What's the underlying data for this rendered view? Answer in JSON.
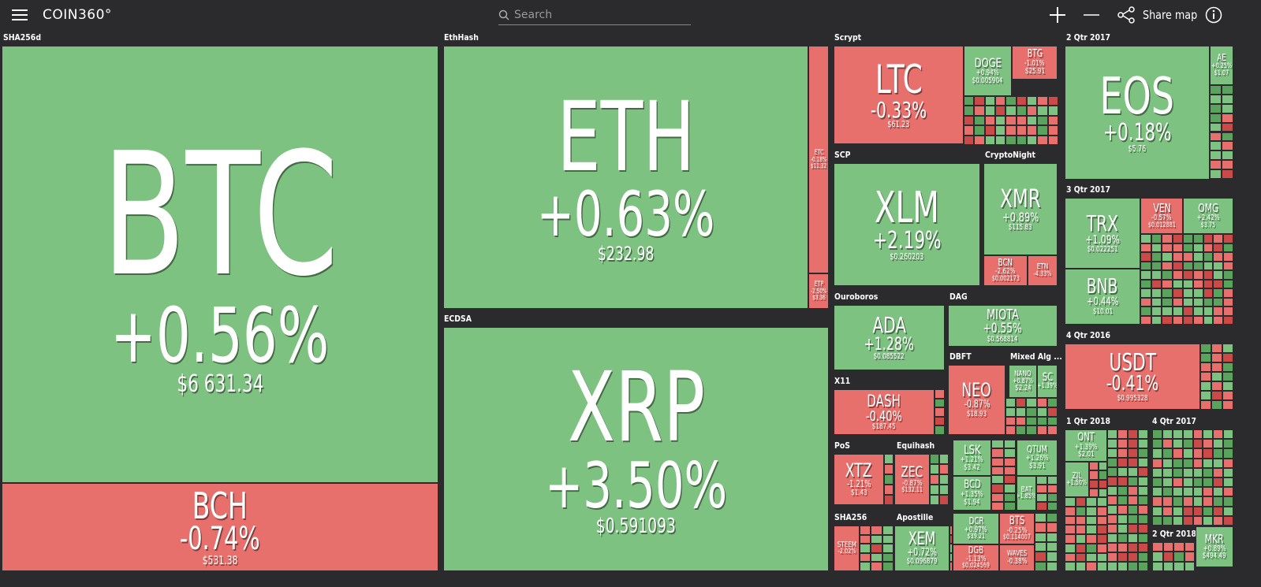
{
  "header": {
    "logo": "COIN360°",
    "search_placeholder": "Search",
    "share": "Share map"
  },
  "groups": [
    {
      "label": "SHA256d",
      "tiles": [
        {
          "symbol": "BTC",
          "change": "+0.56%",
          "price": "$6 631.34",
          "color": "#7dc280"
        },
        {
          "symbol": "BCH",
          "change": "-0.74%",
          "price": "$531.38",
          "color": "#e8706c"
        }
      ]
    },
    {
      "label": "EthHash",
      "tiles": [
        {
          "symbol": "ETH",
          "change": "+0.63%",
          "price": "$232.98",
          "color": "#7dc280"
        },
        {
          "symbol": "ETC",
          "change": "-0.18%",
          "price": "$11.32",
          "color": "#e8706c"
        },
        {
          "symbol": "ETP",
          "change": "-2.50%",
          "price": "$3.36",
          "color": "#e8706c"
        }
      ]
    },
    {
      "label": "ECDSA",
      "tiles": [
        {
          "symbol": "XRP",
          "change": "+3.50%",
          "price": "$0.591093",
          "color": "#7dc280"
        }
      ]
    },
    {
      "label": "Scrypt",
      "tiles": [
        {
          "symbol": "LTC",
          "change": "-0.33%",
          "price": "$61.23",
          "color": "#e8706c"
        },
        {
          "symbol": "DOGE",
          "change": "+0.94%",
          "price": "$0.005904",
          "color": "#7dc280"
        },
        {
          "symbol": "BTG",
          "change": "-1.01%",
          "price": "$25.91",
          "color": "#e8706c"
        }
      ]
    },
    {
      "label": "SCP",
      "tiles": [
        {
          "symbol": "XLM",
          "change": "+2.19%",
          "price": "$0.260203",
          "color": "#7dc280"
        }
      ]
    },
    {
      "label": "CryptoNight",
      "tiles": [
        {
          "symbol": "XMR",
          "change": "+0.89%",
          "price": "$115.83",
          "color": "#7dc280"
        },
        {
          "symbol": "BCN",
          "change": "-2.62%",
          "price": "$0.002173",
          "color": "#e8706c"
        },
        {
          "symbol": "ETN",
          "change": "-4.33%",
          "color": "#e8706c"
        }
      ]
    },
    {
      "label": "Ouroboros",
      "tiles": [
        {
          "symbol": "ADA",
          "change": "+1.28%",
          "price": "$0.085522",
          "color": "#7dc280"
        }
      ]
    },
    {
      "label": "DAG",
      "tiles": [
        {
          "symbol": "MIOTA",
          "change": "+0.55%",
          "price": "$0.568814",
          "color": "#7dc280"
        }
      ]
    },
    {
      "label": "X11",
      "tiles": [
        {
          "symbol": "DASH",
          "change": "-0.40%",
          "price": "$187.45",
          "color": "#e8706c"
        }
      ]
    },
    {
      "label": "DBFT",
      "tiles": [
        {
          "symbol": "NEO",
          "change": "-0.87%",
          "price": "$18.93",
          "color": "#e8706c"
        }
      ]
    },
    {
      "label": "Mixed Alg ...",
      "tiles": [
        {
          "symbol": "NANO",
          "change": "+0.87%",
          "price": "$2.24",
          "color": "#7dc280"
        },
        {
          "symbol": "SC",
          "change": "+1.39%",
          "color": "#7dc280"
        }
      ]
    },
    {
      "label": "PoS",
      "tiles": [
        {
          "symbol": "XTZ",
          "change": "-1.21%",
          "price": "$1.43",
          "color": "#e8706c"
        }
      ]
    },
    {
      "label": "Equihash",
      "tiles": [
        {
          "symbol": "ZEC",
          "change": "-0.87%",
          "price": "$132.11",
          "color": "#e8706c"
        }
      ]
    },
    {
      "tiles": [
        {
          "symbol": "LSK",
          "change": "+1.21%",
          "price": "$3.42",
          "color": "#7dc280"
        },
        {
          "symbol": "QTUM",
          "change": "+1.26%",
          "price": "$3.91",
          "color": "#7dc280"
        },
        {
          "symbol": "BCD",
          "change": "+1.35%",
          "price": "$1.94",
          "color": "#7dc280"
        },
        {
          "symbol": "BAT",
          "change": "+1.85%",
          "color": "#7dc280"
        },
        {
          "symbol": "DCR",
          "change": "+0.97%",
          "price": "$39.21",
          "color": "#7dc280"
        },
        {
          "symbol": "BTS",
          "change": "-0.25%",
          "price": "$0.114007",
          "color": "#e8706c"
        },
        {
          "symbol": "DGB",
          "change": "-1.13%",
          "price": "$0.024569",
          "color": "#e8706c"
        },
        {
          "symbol": "WAVES",
          "change": "-0.38%",
          "color": "#e8706c"
        }
      ]
    },
    {
      "label": "SHA256",
      "tiles": [
        {
          "symbol": "STEEM",
          "change": "-2.02%",
          "color": "#e8706c"
        }
      ]
    },
    {
      "label": "Apostille",
      "tiles": [
        {
          "symbol": "XEM",
          "change": "+0.72%",
          "price": "$0.096879",
          "color": "#7dc280"
        }
      ]
    },
    {
      "label": "2 Qtr 2017",
      "tiles": [
        {
          "symbol": "EOS",
          "change": "+0.18%",
          "price": "$5.76",
          "color": "#7dc280"
        },
        {
          "symbol": "AE",
          "change": "+0.25%",
          "price": "$1.07",
          "color": "#7dc280"
        }
      ]
    },
    {
      "label": "3 Qtr 2017",
      "tiles": [
        {
          "symbol": "TRX",
          "change": "+1.09%",
          "price": "$0.022251",
          "color": "#7dc280"
        },
        {
          "symbol": "VEN",
          "change": "-0.57%",
          "price": "$0.012881",
          "color": "#e8706c"
        },
        {
          "symbol": "OMG",
          "change": "+2.42%",
          "price": "$3.75",
          "color": "#7dc280"
        },
        {
          "symbol": "BNB",
          "change": "+0.44%",
          "price": "$10.01",
          "color": "#7dc280"
        }
      ]
    },
    {
      "label": "4 Qtr 2016",
      "tiles": [
        {
          "symbol": "USDT",
          "change": "-0.41%",
          "price": "$0.995328",
          "color": "#e8706c"
        }
      ]
    },
    {
      "label": "1 Qtr 2018",
      "tiles": [
        {
          "symbol": "ONT",
          "change": "+1.39%",
          "price": "$2.01",
          "color": "#7dc280"
        },
        {
          "symbol": "ZIL",
          "change": "+1.50%",
          "color": "#7dc280"
        }
      ]
    },
    {
      "label": "4 Qtr 2017",
      "tiles": []
    },
    {
      "label": "2 Qtr 2018",
      "tiles": [
        {
          "symbol": "MKR",
          "change": "+0.89%",
          "price": "$494.49",
          "color": "#7dc280"
        }
      ]
    }
  ]
}
